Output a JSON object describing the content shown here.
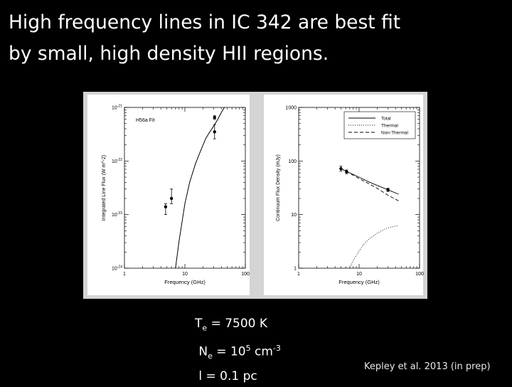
{
  "slide": {
    "title_line1": "High frequency lines in IC 342 are best fit",
    "title_line2": "by small, high density HII regions."
  },
  "params": {
    "te_sym": "T",
    "te_sub": "e",
    "te_val": " = 7500  K",
    "ne_sym": "N",
    "ne_sub": "e",
    "ne_mid": " =   10",
    "ne_exp": "5",
    "ne_unit": " cm",
    "ne_unit_exp": "-3",
    "l_text": "l  =  0.1 pc"
  },
  "citation": "Kepley et al. 2013 (in prep)",
  "colors": {
    "background": "#000000",
    "figure_bg": "#d4d4d4",
    "panel_bg": "#ffffff",
    "text": "#ffffff"
  },
  "chart_data": [
    {
      "type": "line",
      "annotation": "H56a Fit",
      "xlabel": "Frequency (GHz)",
      "ylabel": "Integrated Line Flux (W m^-2)",
      "xscale": "log",
      "yscale": "log",
      "xlim": [
        1,
        100
      ],
      "ylim": [
        1e-24,
        1e-21
      ],
      "x_ticks": [
        "1",
        "10",
        "100"
      ],
      "y_ticks": [
        "10^-24",
        "10^-23",
        "10^-22",
        "10^-21"
      ],
      "fit_curve": {
        "x": [
          7.0,
          8.0,
          10.0,
          12.0,
          15.0,
          18.0,
          20.0,
          22.0,
          25.0,
          30.0,
          35.0,
          40.0,
          45.0
        ],
        "y": [
          1e-24,
          3.2e-24,
          1.6e-23,
          4e-23,
          9e-23,
          1.5e-22,
          2e-22,
          2.6e-22,
          3.3e-22,
          4.5e-22,
          6e-22,
          8e-22,
          1e-21
        ]
      },
      "points": [
        {
          "x": 4.8,
          "y": 1.4e-23,
          "err_low": 1e-23,
          "err_high": 1.6e-23
        },
        {
          "x": 6.0,
          "y": 2e-23,
          "err_low": 1.6e-23,
          "err_high": 3e-23
        },
        {
          "x": 31.0,
          "y": 6.5e-22,
          "err_low": 6e-22,
          "err_high": 7e-22
        },
        {
          "x": 31.0,
          "y": 3.5e-22,
          "err_low": 2.6e-22,
          "err_high": 4.8e-22
        }
      ]
    },
    {
      "type": "line",
      "xlabel": "Frequency (GHz)",
      "ylabel": "Continuum Flux Density (mJy)",
      "xscale": "log",
      "yscale": "log",
      "xlim": [
        1,
        100
      ],
      "ylim": [
        1,
        1000
      ],
      "x_ticks": [
        "1",
        "10",
        "100"
      ],
      "y_ticks": [
        "1",
        "10",
        "100",
        "1000"
      ],
      "legend_position": "top-right",
      "series": [
        {
          "name": "Total",
          "style": "solid",
          "x": [
            5,
            7,
            10,
            15,
            20,
            30,
            45
          ],
          "y": [
            72,
            60,
            50,
            40,
            35,
            29,
            24
          ]
        },
        {
          "name": "Thermal",
          "style": "dotted",
          "x": [
            7,
            8,
            10,
            12,
            15,
            20,
            25,
            30,
            40,
            45
          ],
          "y": [
            1,
            1.4,
            2.1,
            2.8,
            3.6,
            4.5,
            5.2,
            5.7,
            6.1,
            6.2
          ]
        },
        {
          "name": "Non-Thermal",
          "style": "dashed",
          "x": [
            5,
            7,
            10,
            15,
            20,
            30,
            45
          ],
          "y": [
            72,
            59,
            47,
            37,
            31,
            23,
            18
          ]
        }
      ],
      "points": [
        {
          "x": 5.0,
          "y": 72,
          "err_low": 65,
          "err_high": 80
        },
        {
          "x": 6.2,
          "y": 63,
          "err_low": 58,
          "err_high": 68
        },
        {
          "x": 30.0,
          "y": 29,
          "err_low": 27,
          "err_high": 31
        }
      ]
    }
  ]
}
